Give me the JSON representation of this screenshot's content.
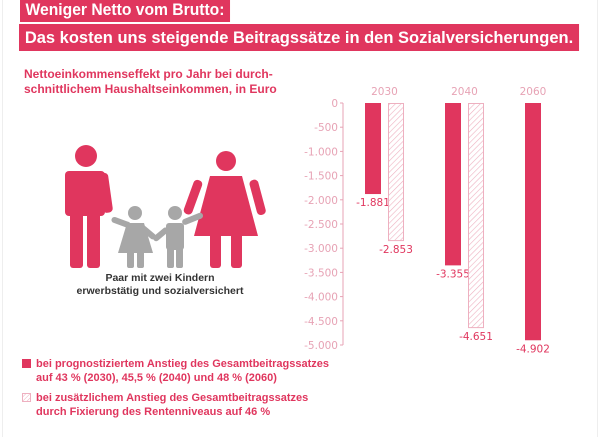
{
  "header": {
    "title_line1": "Weniger Netto vom Brutto:",
    "title_line2": "Das kosten uns steigende Beitragssätze in den Sozialversicherungen."
  },
  "subtitle_line1": "Nettoeinkommenseffekt pro Jahr bei durch-",
  "subtitle_line2": "schnittlichem Haushaltseinkommen, in Euro",
  "figure": {
    "icon": "family-icon",
    "caption_line1": "Paar mit zwei Kindern",
    "caption_line2": "erwerbstätig und sozialversichert"
  },
  "legend": [
    {
      "line1": "bei prognostiziertem Anstieg des Gesamtbeitragssatzes",
      "line2": "auf 43 % (2030), 45,5 % (2040) und 48 % (2060)",
      "style": "solid"
    },
    {
      "line1": "bei zusätzlichem Anstieg des Gesamtbeitragssatzes",
      "line2": "durch Fixierung des Rentenniveaus auf 46 %",
      "style": "hatched"
    }
  ],
  "colors": {
    "accent": "#e0365e",
    "child": "#a7a7a7",
    "axis": "#e7a3b5"
  },
  "chart_data": {
    "type": "bar",
    "categories": [
      "2030",
      "2040",
      "2060"
    ],
    "series": [
      {
        "name": "bei prognostiziertem Anstieg des Gesamtbeitragssatzes",
        "style": "solid",
        "values": [
          -1881,
          -3355,
          -4902
        ],
        "labels": [
          "-1.881",
          "-3.355",
          "-4.902"
        ]
      },
      {
        "name": "bei zusätzlichem Anstieg des Gesamtbeitragssatzes",
        "style": "hatched",
        "values": [
          -2853,
          -4651,
          null
        ],
        "labels": [
          "-2.853",
          "-4.651",
          null
        ]
      }
    ],
    "ylim": [
      -5000,
      0
    ],
    "yticks": [
      0,
      -500,
      -1000,
      -1500,
      -2000,
      -2500,
      -3000,
      -3500,
      -4000,
      -4500,
      -5000
    ],
    "ytick_labels": [
      "0",
      "-500",
      "-1.000",
      "-1.500",
      "-2.000",
      "-2.500",
      "-3.000",
      "-3.500",
      "-4.000",
      "-4.500",
      "-5.000"
    ],
    "xlabel": "",
    "ylabel": "",
    "grid": false
  }
}
